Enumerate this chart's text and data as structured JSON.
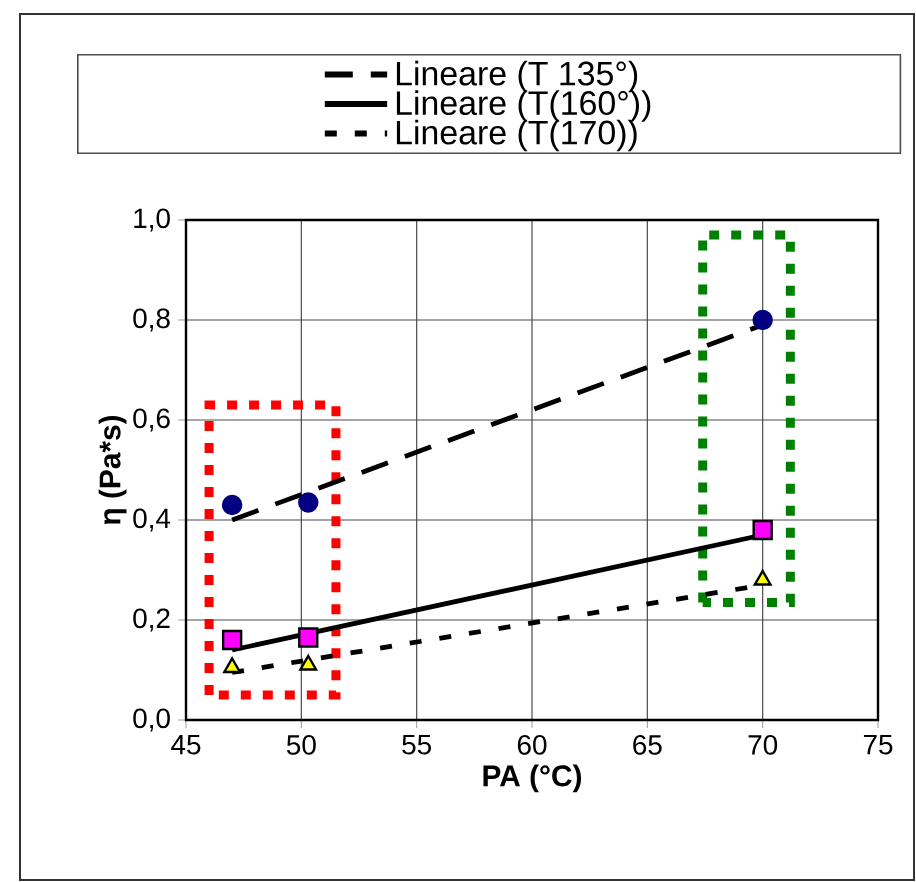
{
  "chart_data": {
    "type": "scatter",
    "xlabel": "PA (°C)",
    "ylabel": "η (Pa*s)",
    "xlim": [
      45,
      75
    ],
    "xticks": [
      45,
      50,
      55,
      60,
      65,
      70,
      75
    ],
    "ylim": [
      0,
      1
    ],
    "yticks": [
      {
        "value": 0,
        "label": "0,0"
      },
      {
        "value": 0.2,
        "label": "0,2"
      },
      {
        "value": 0.4,
        "label": "0,4"
      },
      {
        "value": 0.6,
        "label": "0,6"
      },
      {
        "value": 0.8,
        "label": "0,8"
      },
      {
        "value": 1,
        "label": "1,0"
      }
    ],
    "grid": true,
    "legend": "top",
    "series": [
      {
        "marker": "circle",
        "color": "#000080",
        "x": [
          47,
          50.3,
          70
        ],
        "values": [
          0.43,
          0.435,
          0.8
        ]
      },
      {
        "marker": "square",
        "color": "#ff00ff",
        "x": [
          47,
          50.3,
          70
        ],
        "values": [
          0.16,
          0.165,
          0.38
        ]
      },
      {
        "marker": "triangle",
        "color": "#ffff00",
        "x": [
          47,
          50.3,
          70
        ],
        "values": [
          0.105,
          0.11,
          0.28
        ]
      },
      {
        "type": "line",
        "name": "Lineare (T 135°)",
        "line_style": "dashed",
        "color": "#000000",
        "x": [
          47,
          70
        ],
        "values": [
          0.4,
          0.79
        ]
      },
      {
        "type": "line",
        "name": "Lineare (T(160°))",
        "line_style": "solid",
        "color": "#000000",
        "x": [
          47,
          70
        ],
        "values": [
          0.14,
          0.37
        ]
      },
      {
        "type": "line",
        "name": "Lineare (T(170))",
        "line_style": "dotted",
        "color": "#000000",
        "x": [
          47,
          70
        ],
        "values": [
          0.095,
          0.27
        ]
      }
    ]
  }
}
